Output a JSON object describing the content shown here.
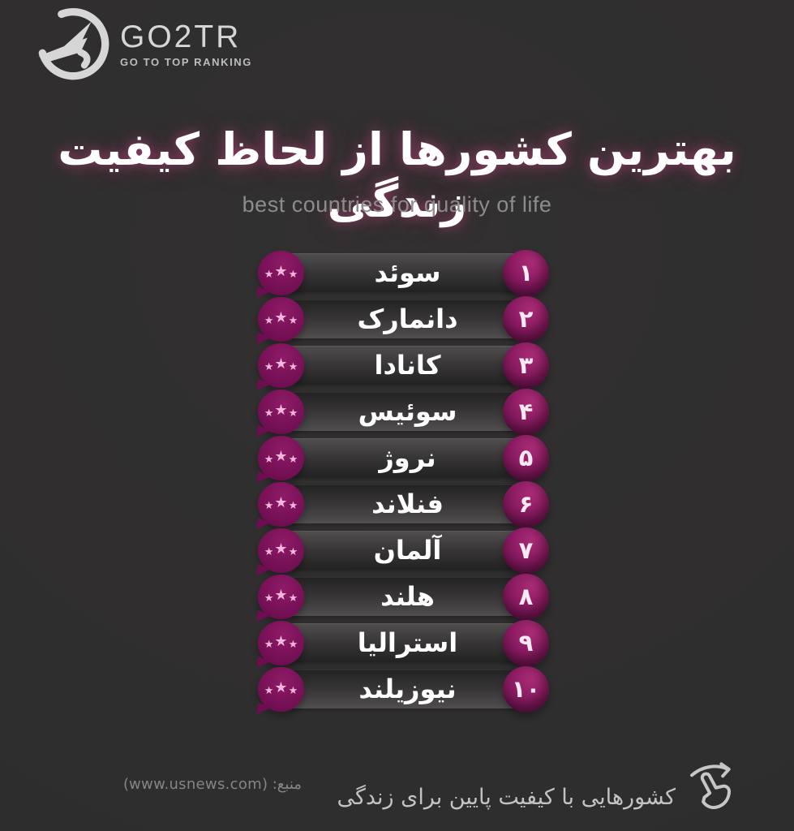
{
  "logo": {
    "name": "GO2TR",
    "tagline": "GO TO TOP RANKING"
  },
  "header": {
    "title_fa": "بهترین کشورها از لحاظ کیفیت زندگی",
    "subtitle_en": "best countries for quality of life"
  },
  "chart_data": {
    "type": "table",
    "title": "بهترین کشورها از لحاظ کیفیت زندگی",
    "subtitle": "best countries for quality of life",
    "columns": [
      "rank",
      "country",
      "stars"
    ],
    "rows": [
      {
        "rank": 1,
        "rank_fa": "۱",
        "country_fa": "سوئد",
        "stars": 3
      },
      {
        "rank": 2,
        "rank_fa": "۲",
        "country_fa": "دانمارک",
        "stars": 3
      },
      {
        "rank": 3,
        "rank_fa": "۳",
        "country_fa": "کانادا",
        "stars": 3
      },
      {
        "rank": 4,
        "rank_fa": "۴",
        "country_fa": "سوئیس",
        "stars": 3
      },
      {
        "rank": 5,
        "rank_fa": "۵",
        "country_fa": "نروژ",
        "stars": 3
      },
      {
        "rank": 6,
        "rank_fa": "۶",
        "country_fa": "فنلاند",
        "stars": 3
      },
      {
        "rank": 7,
        "rank_fa": "۷",
        "country_fa": "آلمان",
        "stars": 3
      },
      {
        "rank": 8,
        "rank_fa": "۸",
        "country_fa": "هلند",
        "stars": 3
      },
      {
        "rank": 9,
        "rank_fa": "۹",
        "country_fa": "استرالیا",
        "stars": 3
      },
      {
        "rank": 10,
        "rank_fa": "۱۰",
        "country_fa": "نیوزیلند",
        "stars": 3
      }
    ],
    "source": "www.usnews.com",
    "legend_position": "none",
    "grid": false
  },
  "footer": {
    "source_text": "منبع:  (www.usnews.com)",
    "cta_text": "کشورهایی با کیفیت پایین برای زندگی"
  },
  "icons": {
    "star_glyph": "★",
    "hand": "swipe-hand-icon",
    "logo": "airplane-circle-icon"
  },
  "colors": {
    "bg": "#2e2d2d",
    "bar_light": "#504e4e",
    "bar_mid": "#383636",
    "bar_dark": "#232222",
    "rank_hi": "#a82c75",
    "rank_mid": "#8c1b63",
    "rank_lo": "#570d41",
    "badge_hi": "#8f1b67",
    "badge_lo": "#6e0d50",
    "star": "#f4b6da",
    "title": "#ffffff",
    "title_glow": "#d2468c",
    "subtitle": "#8c8c8c",
    "muted": "#858585",
    "cta": "#c3c3c3",
    "logo": "#d6d6d6"
  }
}
